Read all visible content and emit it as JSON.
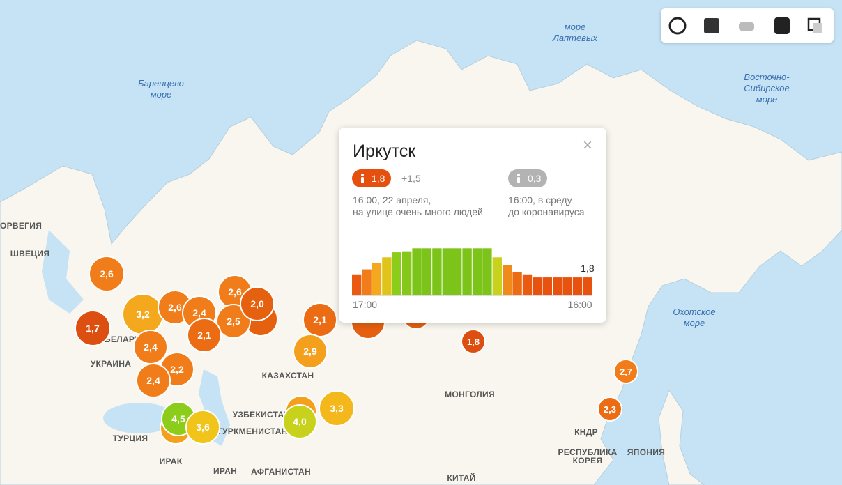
{
  "seas": [
    {
      "lines": [
        "море",
        "Лаптевых"
      ]
    },
    {
      "lines": [
        "Баренцево",
        "море"
      ]
    },
    {
      "lines": [
        "Восточно-",
        "Сибирское",
        "море"
      ]
    },
    {
      "lines": [
        "Охотское",
        "море"
      ]
    }
  ],
  "countries": [
    {
      "lines": [
        "НОРВЕГИЯ"
      ]
    },
    {
      "lines": [
        "ШВЕЦИЯ"
      ]
    },
    {
      "lines": [
        "БЕЛАРУСЬ"
      ]
    },
    {
      "lines": [
        "УКРАИНА"
      ]
    },
    {
      "lines": [
        "КАЗАХСТАН"
      ]
    },
    {
      "lines": [
        "МОНГОЛИЯ"
      ]
    },
    {
      "lines": [
        "УЗБЕКИСТАН"
      ]
    },
    {
      "lines": [
        "ТУРКМЕНИСТАН"
      ]
    },
    {
      "lines": [
        "ТУРЦИЯ"
      ]
    },
    {
      "lines": [
        "ИРАК"
      ]
    },
    {
      "lines": [
        "ИРАН"
      ]
    },
    {
      "lines": [
        "АФГАНИСТАН"
      ]
    },
    {
      "lines": [
        "КИТАЙ"
      ]
    },
    {
      "lines": [
        "КНДР"
      ]
    },
    {
      "lines": [
        "РЕСПУБЛИКА",
        "КОРЕЯ"
      ]
    },
    {
      "lines": [
        "ЯПОНИЯ"
      ]
    }
  ],
  "markers": [
    {
      "label": "2,6",
      "color": "#f07d1a"
    },
    {
      "label": "1,7",
      "color": "#dd4f10"
    },
    {
      "label": "3,2",
      "color": "#f4a81d"
    },
    {
      "label": "2,6",
      "color": "#f07d1a"
    },
    {
      "label": "2,4",
      "color": "#f07d1a"
    },
    {
      "label": "2,6",
      "color": "#f07d1a"
    },
    {
      "label": "2,5",
      "color": "#f07d1a"
    },
    {
      "label": "2,0",
      "color": "#e5600f"
    },
    {
      "label": "2,1",
      "color": "#ec6c14"
    },
    {
      "label": "2,4",
      "color": "#f07d1a"
    },
    {
      "label": "2,2",
      "color": "#f07d1a"
    },
    {
      "label": "2,4",
      "color": "#f07d1a"
    },
    {
      "label": "2,1",
      "color": "#ec6c14"
    },
    {
      "label": "2,9",
      "color": "#f4a01d"
    },
    {
      "label": "3,3",
      "color": "#f4b81d"
    },
    {
      "label": "4,0",
      "color": "#c8d21d"
    },
    {
      "label": "4,5",
      "color": "#8ccc1a"
    },
    {
      "label": "3,6",
      "color": "#f0c419"
    },
    {
      "label": "1,8",
      "color": "#dd4f10"
    },
    {
      "label": "2,7",
      "color": "#f07d1a"
    },
    {
      "label": "2,3",
      "color": "#ec6c14"
    }
  ],
  "popup": {
    "title": "Иркутск",
    "current": "1,8",
    "change": "+1,5",
    "baseline": "0,3",
    "current_note": [
      "16:00, 22 апреля,",
      "на улице очень много людей"
    ],
    "baseline_note": [
      "16:00, в среду",
      "до коронавируса"
    ],
    "chart": {
      "type": "bar",
      "values": [
        2.1,
        2.6,
        3.2,
        3.8,
        4.3,
        4.4,
        4.7,
        4.7,
        4.7,
        4.7,
        4.7,
        4.7,
        4.7,
        4.7,
        3.8,
        3.0,
        2.3,
        2.1,
        1.8,
        1.8,
        1.8,
        1.8,
        1.8,
        1.8
      ],
      "colors": [
        "#ea5a10",
        "#f07d1a",
        "#f4a81d",
        "#e0c41a",
        "#8ccc1a",
        "#86c81a",
        "#7cc41a",
        "#7cc41a",
        "#7cc41a",
        "#7cc41a",
        "#7cc41a",
        "#7cc41a",
        "#7cc41a",
        "#7cc41a",
        "#c8d21d",
        "#f08a1a",
        "#ec6c14",
        "#ea5a10",
        "#e8520f",
        "#e8520f",
        "#e8520f",
        "#e8520f",
        "#e8520f",
        "#e8520f"
      ],
      "ylim": [
        0,
        5
      ],
      "end_label": "1,8",
      "x_labels": [
        "17:00",
        "16:00"
      ]
    }
  }
}
